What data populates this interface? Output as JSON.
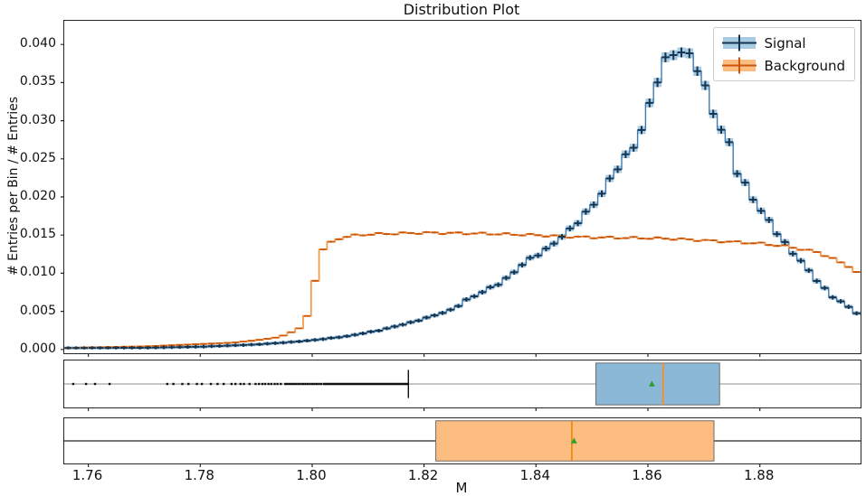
{
  "figure": {
    "title": "Distribution Plot"
  },
  "axes": {
    "xlabel": "M",
    "ylabel": "# Entries per Bin / # Entries",
    "x_ticks": [
      {
        "value": 1.76,
        "label": "1.76"
      },
      {
        "value": 1.78,
        "label": "1.78"
      },
      {
        "value": 1.8,
        "label": "1.80"
      },
      {
        "value": 1.82,
        "label": "1.82"
      },
      {
        "value": 1.84,
        "label": "1.84"
      },
      {
        "value": 1.86,
        "label": "1.86"
      },
      {
        "value": 1.88,
        "label": "1.88"
      }
    ],
    "y_ticks": [
      {
        "value": 0.0,
        "label": "0.000"
      },
      {
        "value": 0.005,
        "label": "0.005"
      },
      {
        "value": 0.01,
        "label": "0.010"
      },
      {
        "value": 0.015,
        "label": "0.015"
      },
      {
        "value": 0.02,
        "label": "0.020"
      },
      {
        "value": 0.025,
        "label": "0.025"
      },
      {
        "value": 0.03,
        "label": "0.030"
      },
      {
        "value": 0.035,
        "label": "0.035"
      },
      {
        "value": 0.04,
        "label": "0.040"
      }
    ],
    "spine_color": "#262626"
  },
  "legend": {
    "entries": [
      {
        "label": "Signal",
        "patch_fill": "#a9cce5",
        "cross_color": "#16344e"
      },
      {
        "label": "Background",
        "patch_fill": "#fdbd80",
        "cross_color": "#c9570c"
      }
    ]
  },
  "chart_data": {
    "type": "histogram",
    "title": "Distribution Plot",
    "xlabel": "M",
    "ylabel": "# Entries per Bin / # Entries",
    "x_range": [
      1.7557,
      1.898
    ],
    "y_range": [
      -0.0005,
      0.0431
    ],
    "bins": 100,
    "legend_position": "upper right",
    "grid": false,
    "series": [
      {
        "name": "Signal",
        "style": "step-errorband",
        "band_color": "#a9cce5",
        "line_color": "#3d7ab3",
        "err_color": "#16344e",
        "anchors": [
          [
            1.7557,
            0.00018
          ],
          [
            1.77,
            0.00022
          ],
          [
            1.78,
            0.00035
          ],
          [
            1.79,
            0.00065
          ],
          [
            1.796,
            0.00095
          ],
          [
            1.8,
            0.0012
          ],
          [
            1.806,
            0.0017
          ],
          [
            1.812,
            0.0025
          ],
          [
            1.818,
            0.0036
          ],
          [
            1.822,
            0.0045
          ],
          [
            1.8253,
            0.0053
          ],
          [
            1.8273,
            0.0064
          ],
          [
            1.8293,
            0.0071
          ],
          [
            1.8313,
            0.0079
          ],
          [
            1.8333,
            0.0086
          ],
          [
            1.8353,
            0.0096
          ],
          [
            1.8373,
            0.011
          ],
          [
            1.8393,
            0.0121
          ],
          [
            1.8413,
            0.0128
          ],
          [
            1.8433,
            0.014
          ],
          [
            1.8453,
            0.0152
          ],
          [
            1.8473,
            0.0166
          ],
          [
            1.8493,
            0.0182
          ],
          [
            1.8513,
            0.0199
          ],
          [
            1.8533,
            0.0224
          ],
          [
            1.8553,
            0.0247
          ],
          [
            1.8573,
            0.0264
          ],
          [
            1.859,
            0.029
          ],
          [
            1.861,
            0.0338
          ],
          [
            1.8625,
            0.0372
          ],
          [
            1.864,
            0.0388
          ],
          [
            1.8655,
            0.039
          ],
          [
            1.8672,
            0.0388
          ],
          [
            1.8686,
            0.0373
          ],
          [
            1.8698,
            0.0352
          ],
          [
            1.871,
            0.0326
          ],
          [
            1.8722,
            0.03
          ],
          [
            1.8738,
            0.0278
          ],
          [
            1.875,
            0.0265
          ],
          [
            1.8762,
            0.0224
          ],
          [
            1.8777,
            0.0214
          ],
          [
            1.879,
            0.0195
          ],
          [
            1.8806,
            0.0177
          ],
          [
            1.8824,
            0.0163
          ],
          [
            1.8833,
            0.0149
          ],
          [
            1.885,
            0.0135
          ],
          [
            1.8862,
            0.0124
          ],
          [
            1.8876,
            0.0114
          ],
          [
            1.8891,
            0.01
          ],
          [
            1.8907,
            0.0086
          ],
          [
            1.8921,
            0.0076
          ],
          [
            1.8934,
            0.0066
          ],
          [
            1.8947,
            0.0062
          ],
          [
            1.8958,
            0.0056
          ],
          [
            1.8978,
            0.0045
          ],
          [
            1.898,
            0.0038
          ]
        ]
      },
      {
        "name": "Background",
        "style": "step-errordash",
        "line_color": "#f59b4c",
        "err_color": "#c9570c",
        "anchors": [
          [
            1.7557,
            0.0002
          ],
          [
            1.77,
            0.0004
          ],
          [
            1.78,
            0.0007
          ],
          [
            1.786,
            0.0009
          ],
          [
            1.79,
            0.0012
          ],
          [
            1.794,
            0.0016
          ],
          [
            1.7955,
            0.002
          ],
          [
            1.797,
            0.0025
          ],
          [
            1.7985,
            0.0031
          ],
          [
            1.7999,
            0.0061
          ],
          [
            1.8013,
            0.0126
          ],
          [
            1.8029,
            0.0138
          ],
          [
            1.8044,
            0.0145
          ],
          [
            1.807,
            0.0149
          ],
          [
            1.81,
            0.0151
          ],
          [
            1.815,
            0.0152
          ],
          [
            1.82,
            0.0153
          ],
          [
            1.83,
            0.0152
          ],
          [
            1.84,
            0.015
          ],
          [
            1.845,
            0.0148
          ],
          [
            1.85,
            0.0147
          ],
          [
            1.86,
            0.0146
          ],
          [
            1.865,
            0.0145
          ],
          [
            1.87,
            0.0143
          ],
          [
            1.875,
            0.0141
          ],
          [
            1.88,
            0.0139
          ],
          [
            1.8849,
            0.0135
          ],
          [
            1.89,
            0.0128
          ],
          [
            1.893,
            0.012
          ],
          [
            1.895,
            0.0112
          ],
          [
            1.897,
            0.0103
          ],
          [
            1.898,
            0.0098
          ]
        ]
      }
    ],
    "boxplots": [
      {
        "name": "Signal",
        "fill": "#8cb8d8",
        "edge": "#6d6d6d",
        "median": 1.8627,
        "median_color": "#ff8c1a",
        "mean": 1.8607,
        "q1": 1.8507,
        "q3": 1.8728,
        "whisker_low": 1.8172,
        "dense_fliers_from": 1.8019,
        "baseline_color": "#b3b3b3",
        "fliers": [
          1.7573,
          1.7596,
          1.7612,
          1.7638,
          1.7741,
          1.7752,
          1.7768,
          1.7779,
          1.7794,
          1.7803,
          1.7819,
          1.7831,
          1.7842,
          1.7856,
          1.7863,
          1.7872,
          1.7878,
          1.7888,
          1.7899,
          1.7905,
          1.7911,
          1.7916,
          1.7922,
          1.7927,
          1.7933,
          1.7938,
          1.7944,
          1.7952,
          1.7956,
          1.796,
          1.7964,
          1.7968,
          1.7972,
          1.7976,
          1.798,
          1.7984,
          1.7988,
          1.7992,
          1.7996,
          1.8,
          1.8004,
          1.8008,
          1.8012,
          1.8016
        ]
      },
      {
        "name": "Background",
        "fill": "#fdbd80",
        "edge": "#6d6d6d",
        "median": 1.8464,
        "median_color": "#ee8b0e",
        "mean": 1.8468,
        "q1": 1.8221,
        "q3": 1.8718,
        "whisker_low": 1.7557,
        "whisker_high": 1.898,
        "baseline_color": "#4a4a4a",
        "fliers": []
      }
    ],
    "mean_marker_color": "#2ca02c",
    "flier_color": "#111111"
  }
}
